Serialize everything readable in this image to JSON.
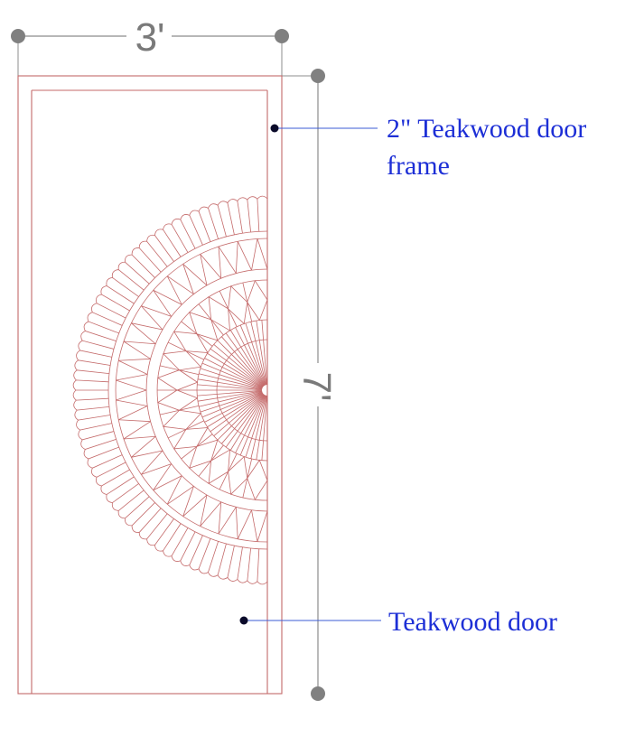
{
  "dimensions": {
    "width": "3'",
    "height": "7'"
  },
  "annotations": {
    "frame_line1": "2\" Teakwood door",
    "frame_line2": "frame",
    "door": "Teakwood door"
  },
  "colors": {
    "linework": "#c46a6a",
    "dimension": "#8c8c8c",
    "label": "#1d2fd6",
    "leader": "#3b5bd6"
  }
}
